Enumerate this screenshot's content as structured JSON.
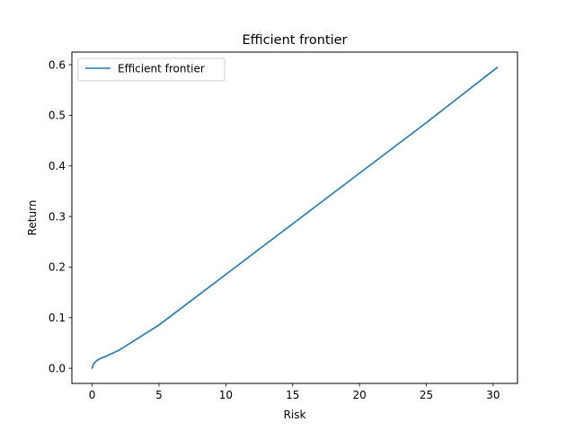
{
  "chart_data": {
    "type": "line",
    "title": "Efficient frontier",
    "xlabel": "Risk",
    "ylabel": "Return",
    "xlim": [
      -1.52,
      31.82
    ],
    "ylim": [
      -0.03,
      0.625
    ],
    "xticks": [
      0,
      5,
      10,
      15,
      20,
      25,
      30
    ],
    "xtick_labels": [
      "0",
      "5",
      "10",
      "15",
      "20",
      "25",
      "30"
    ],
    "yticks": [
      0.0,
      0.1,
      0.2,
      0.3,
      0.4,
      0.5,
      0.6
    ],
    "ytick_labels": [
      "0.0",
      "0.1",
      "0.2",
      "0.3",
      "0.4",
      "0.5",
      "0.6"
    ],
    "grid": false,
    "legend_position": "upper-left",
    "series": [
      {
        "name": "Efficient frontier",
        "color": "#1f77b4",
        "x": [
          0.0,
          0.03,
          0.08,
          0.15,
          0.25,
          0.4,
          0.6,
          1.0,
          2.0,
          5.0,
          10.0,
          15.0,
          20.0,
          25.0,
          30.3
        ],
        "y": [
          0.0,
          0.004,
          0.007,
          0.01,
          0.013,
          0.016,
          0.019,
          0.0235,
          0.0355,
          0.0855,
          0.1855,
          0.2855,
          0.3855,
          0.4855,
          0.5945
        ]
      }
    ]
  }
}
